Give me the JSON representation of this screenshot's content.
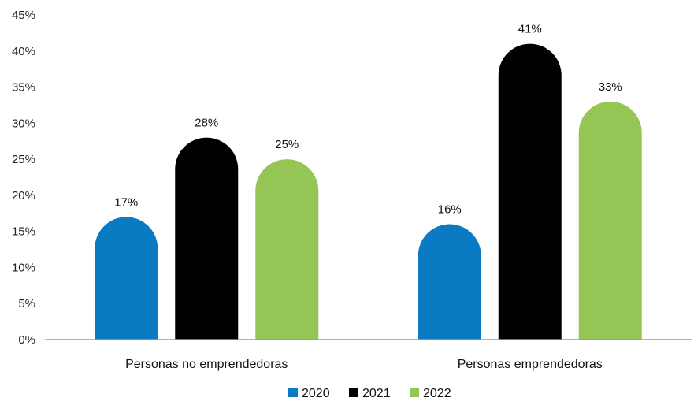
{
  "chart_data": {
    "type": "bar",
    "categories": [
      "Personas no emprendedoras",
      "Personas  emprendedoras"
    ],
    "series": [
      {
        "name": "2020",
        "color": "#0a7bc2",
        "values": [
          17,
          16
        ],
        "labels": [
          "17%",
          "16%"
        ]
      },
      {
        "name": "2021",
        "color": "#000000",
        "values": [
          28,
          41
        ],
        "labels": [
          "28%",
          "41%"
        ]
      },
      {
        "name": "2022",
        "color": "#95c555",
        "values": [
          25,
          33
        ],
        "labels": [
          "25%",
          "33%"
        ]
      }
    ],
    "ylim": [
      0,
      45
    ],
    "yticks": [
      0,
      5,
      10,
      15,
      20,
      25,
      30,
      35,
      40,
      45
    ],
    "ytick_labels": [
      "0%",
      "5%",
      "10%",
      "15%",
      "20%",
      "25%",
      "30%",
      "35%",
      "40%",
      "45%"
    ],
    "grid": false,
    "legend_position": "bottom",
    "bar_style": "rounded-top"
  }
}
